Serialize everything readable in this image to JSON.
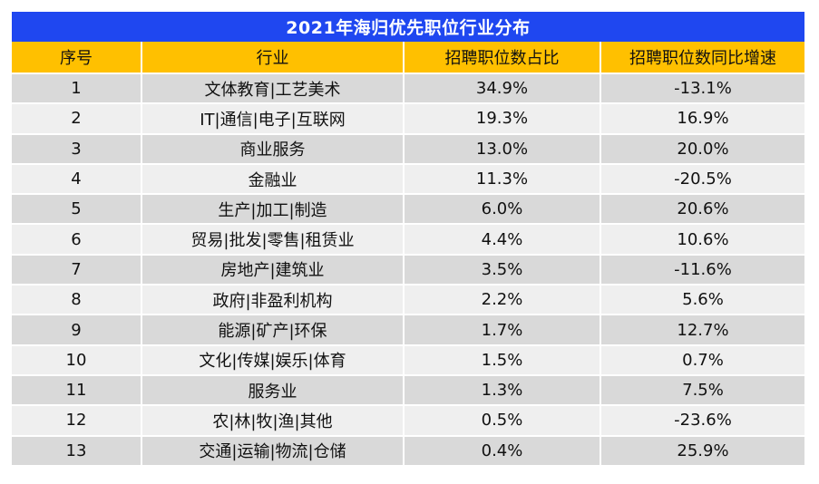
{
  "title": "2021年海归优先职位行业分布",
  "columns": [
    "序号",
    "行业",
    "招聘职位数占比",
    "招聘职位数同比增速"
  ],
  "rows": [
    {
      "no": "1",
      "industry": "文体教育|工艺美术",
      "share": "34.9%",
      "growth": "-13.1%"
    },
    {
      "no": "2",
      "industry": "IT|通信|电子|互联网",
      "share": "19.3%",
      "growth": "16.9%"
    },
    {
      "no": "3",
      "industry": "商业服务",
      "share": "13.0%",
      "growth": "20.0%"
    },
    {
      "no": "4",
      "industry": "金融业",
      "share": "11.3%",
      "growth": "-20.5%"
    },
    {
      "no": "5",
      "industry": "生产|加工|制造",
      "share": "6.0%",
      "growth": "20.6%"
    },
    {
      "no": "6",
      "industry": "贸易|批发|零售|租赁业",
      "share": "4.4%",
      "growth": "10.6%"
    },
    {
      "no": "7",
      "industry": "房地产|建筑业",
      "share": "3.5%",
      "growth": "-11.6%"
    },
    {
      "no": "8",
      "industry": "政府|非盈利机构",
      "share": "2.2%",
      "growth": "5.6%"
    },
    {
      "no": "9",
      "industry": "能源|矿产|环保",
      "share": "1.7%",
      "growth": "12.7%"
    },
    {
      "no": "10",
      "industry": "文化|传媒|娱乐|体育",
      "share": "1.5%",
      "growth": "0.7%"
    },
    {
      "no": "11",
      "industry": "服务业",
      "share": "1.3%",
      "growth": "7.5%"
    },
    {
      "no": "12",
      "industry": "农|林|牧|渔|其他",
      "share": "0.5%",
      "growth": "-23.6%"
    },
    {
      "no": "13",
      "industry": "交通|运输|物流|仓储",
      "share": "0.4%",
      "growth": "25.9%"
    }
  ],
  "colors": {
    "title_bg": "#1f47f0",
    "header_bg": "#ffc000",
    "row_shade": "#d9d9d9",
    "row_plain": "#efefef"
  }
}
